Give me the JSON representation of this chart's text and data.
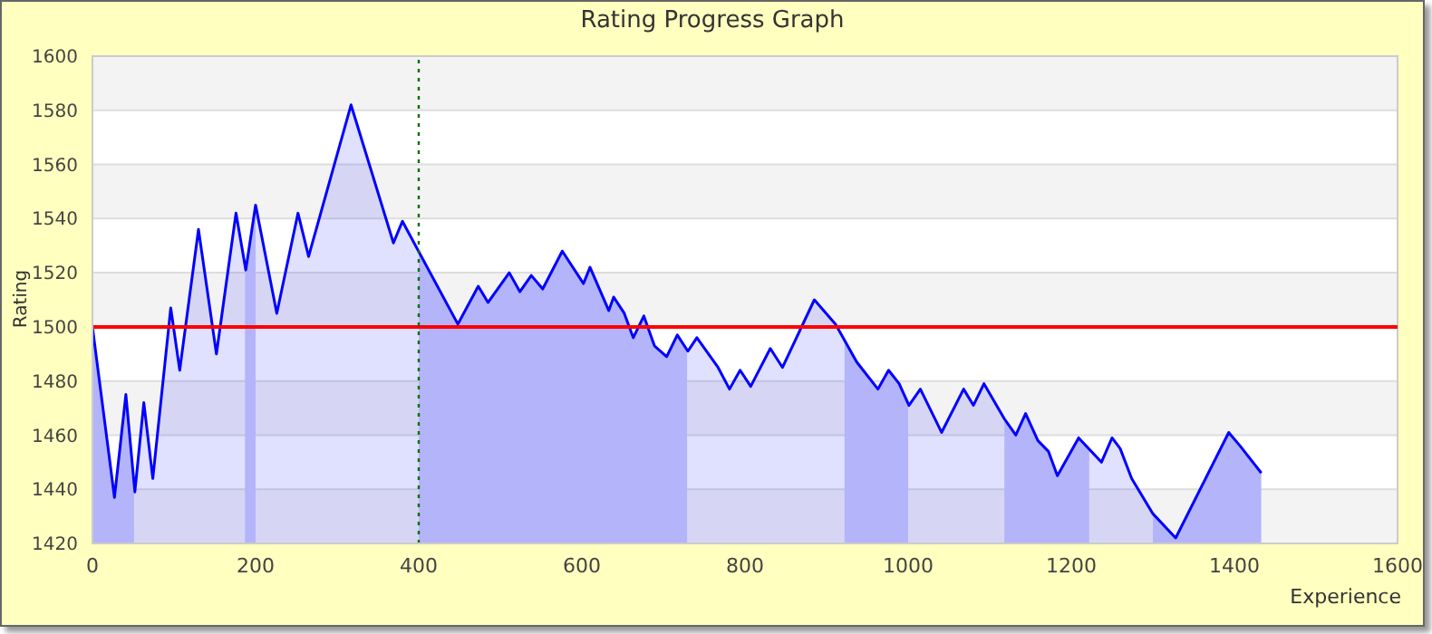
{
  "chart_data": {
    "type": "area",
    "title": "Rating Progress Graph",
    "xlabel": "Experience",
    "ylabel": "Rating",
    "xlim": [
      0,
      1600
    ],
    "xticks": [
      0,
      200,
      400,
      600,
      800,
      1000,
      1200,
      1400,
      1600
    ],
    "ylim": [
      1420,
      1600
    ],
    "yticks": [
      1420,
      1440,
      1460,
      1480,
      1500,
      1520,
      1540,
      1560,
      1580,
      1600
    ],
    "grid": "y",
    "legend": false,
    "series": [
      {
        "color": "#0000ff",
        "x": [
          0,
          27,
          41,
          52,
          63,
          74,
          96,
          107,
          130,
          152,
          176,
          188,
          200,
          226,
          252,
          265,
          317,
          369,
          380,
          448,
          473,
          485,
          511,
          524,
          538,
          552,
          576,
          602,
          610,
          633,
          639,
          652,
          663,
          676,
          689,
          704,
          717,
          730,
          741,
          767,
          781,
          794,
          807,
          831,
          846,
          885,
          911,
          937,
          963,
          976,
          989,
          1001,
          1015,
          1041,
          1068,
          1080,
          1093,
          1118,
          1132,
          1144,
          1159,
          1172,
          1183,
          1209,
          1237,
          1250,
          1260,
          1274,
          1300,
          1328,
          1393,
          1407,
          1433
        ],
        "values": [
          1500,
          1437,
          1475,
          1439,
          1472,
          1444,
          1507,
          1484,
          1536,
          1490,
          1542,
          1521,
          1545,
          1505,
          1542,
          1526,
          1582,
          1531,
          1539,
          1501,
          1515,
          1509,
          1520,
          1513,
          1519,
          1514,
          1528,
          1516,
          1522,
          1506,
          1511,
          1505,
          1496,
          1504,
          1493,
          1489,
          1497,
          1491,
          1496,
          1485,
          1477,
          1484,
          1478,
          1492,
          1485,
          1510,
          1501,
          1487,
          1477,
          1484,
          1479,
          1471,
          1477,
          1461,
          1477,
          1471,
          1479,
          1466,
          1460,
          1468,
          1458,
          1454,
          1445,
          1459,
          1450,
          1459,
          1455,
          1444,
          1431,
          1422,
          1461,
          1456,
          1446
        ]
      }
    ],
    "ref_lines": [
      {
        "axis": "y",
        "value": 1500,
        "color": "#ff0000",
        "line_style": "solid"
      },
      {
        "axis": "x",
        "value": 400,
        "color": "#007000",
        "line_style": "dotted"
      }
    ],
    "bands": [
      {
        "axis": "x",
        "from": 0,
        "to": 51,
        "color": "#ccccfa"
      },
      {
        "axis": "x",
        "from": 187,
        "to": 200,
        "color": "#ccccfa"
      },
      {
        "axis": "x",
        "from": 400,
        "to": 729,
        "color": "#ccccfa"
      },
      {
        "axis": "x",
        "from": 922,
        "to": 1000,
        "color": "#ccccfa"
      },
      {
        "axis": "x",
        "from": 1118,
        "to": 1222,
        "color": "#ccccfa"
      },
      {
        "axis": "x",
        "from": 1300,
        "to": 1433,
        "color": "#ccccfa"
      }
    ]
  }
}
